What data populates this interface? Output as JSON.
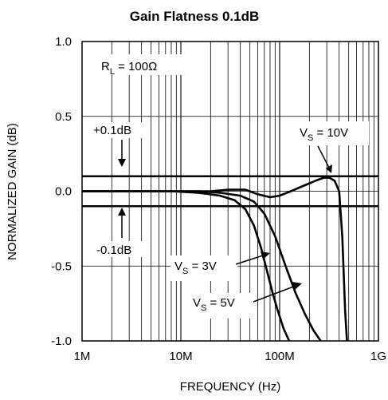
{
  "chart_data": {
    "type": "line",
    "title": "Gain Flatness 0.1dB",
    "xlabel": "FREQUENCY (Hz)",
    "ylabel": "NORMALIZED GAIN (dB)",
    "x_scale": "log",
    "xlim": [
      1000000,
      1000000000
    ],
    "ylim": [
      -1.0,
      1.0
    ],
    "grid": true,
    "x_ticks": [
      {
        "value": 1000000,
        "label": "1M"
      },
      {
        "value": 10000000,
        "label": "10M"
      },
      {
        "value": 100000000,
        "label": "100M"
      },
      {
        "value": 1000000000,
        "label": "1G"
      }
    ],
    "y_ticks": [
      {
        "value": 1.0,
        "label": "1.0"
      },
      {
        "value": 0.5,
        "label": "0.5"
      },
      {
        "value": 0.0,
        "label": "0.0"
      },
      {
        "value": -0.5,
        "label": "-0.5"
      },
      {
        "value": -1.0,
        "label": "-1.0"
      }
    ],
    "reference_lines": [
      {
        "y": 0.1,
        "label": "+0.1dB"
      },
      {
        "y": -0.1,
        "label": "-0.1dB"
      }
    ],
    "load_note": {
      "main": "R",
      "sub": "L",
      "rest": " = 100Ω"
    },
    "series": [
      {
        "main": "V",
        "sub": "S",
        "rest": " = 3V",
        "x": [
          1000000,
          3000000,
          8000000,
          15000000,
          25000000,
          35000000,
          45000000,
          55000000,
          65000000,
          75000000,
          85000000,
          95000000,
          110000000,
          125000000
        ],
        "y": [
          0.0,
          0.0,
          0.0,
          -0.01,
          -0.03,
          -0.06,
          -0.12,
          -0.23,
          -0.38,
          -0.54,
          -0.68,
          -0.79,
          -0.92,
          -1.0
        ]
      },
      {
        "main": "V",
        "sub": "S",
        "rest": " = 5V",
        "x": [
          1000000,
          3000000,
          8000000,
          15000000,
          25000000,
          40000000,
          55000000,
          70000000,
          90000000,
          115000000,
          145000000,
          180000000,
          220000000,
          260000000
        ],
        "y": [
          0.0,
          0.0,
          0.0,
          0.0,
          -0.01,
          -0.03,
          -0.07,
          -0.15,
          -0.3,
          -0.5,
          -0.68,
          -0.82,
          -0.93,
          -1.0
        ]
      },
      {
        "main": "V",
        "sub": "S",
        "rest": " = 10V",
        "x": [
          1000000,
          5000000,
          12000000,
          20000000,
          30000000,
          45000000,
          60000000,
          80000000,
          100000000,
          130000000,
          180000000,
          230000000,
          280000000,
          320000000,
          360000000,
          400000000,
          430000000,
          460000000,
          480000000
        ],
        "y": [
          0.0,
          0.0,
          0.0,
          0.0,
          0.01,
          0.01,
          -0.02,
          -0.04,
          -0.03,
          0.0,
          0.04,
          0.07,
          0.09,
          0.09,
          0.07,
          0.0,
          -0.3,
          -0.8,
          -1.0
        ]
      }
    ]
  }
}
